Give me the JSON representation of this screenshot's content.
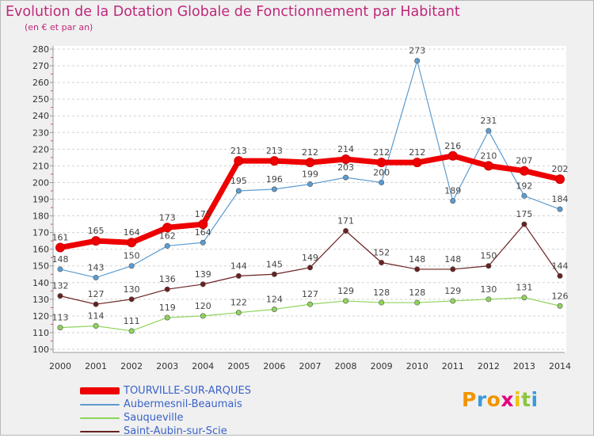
{
  "header": {
    "title": "Evolution de la Dotation Globale de Fonctionnement par Habitant",
    "subtitle": "(en € et par an)"
  },
  "logo": {
    "text": "Proxiti",
    "colors": [
      "#f29400",
      "#3a9ad9",
      "#f29400",
      "#e5007e",
      "#f2c400",
      "#8cc63f",
      "#3a9ad9"
    ]
  },
  "chart_data": {
    "type": "line",
    "title": "Evolution de la Dotation Globale de Fonctionnement par Habitant",
    "subtitle": "(en € et par an)",
    "x": [
      2000,
      2001,
      2002,
      2003,
      2004,
      2005,
      2006,
      2007,
      2008,
      2009,
      2010,
      2011,
      2012,
      2013,
      2014
    ],
    "ylim": [
      100,
      280
    ],
    "yticks": [
      100,
      110,
      120,
      130,
      140,
      150,
      160,
      170,
      180,
      190,
      200,
      210,
      220,
      230,
      240,
      250,
      260,
      270,
      280
    ],
    "grid": "horizontal dashed",
    "legend": "bottom-left",
    "series": [
      {
        "name": "TOURVILLE-SUR-ARQUES",
        "color": "#ee0000",
        "values": [
          161,
          165,
          164,
          173,
          175,
          213,
          213,
          212,
          214,
          212,
          212,
          216,
          210,
          207,
          202
        ]
      },
      {
        "name": "Aubermesnil-Beaumais",
        "color": "#5c9cd0",
        "values": [
          148,
          143,
          150,
          162,
          164,
          195,
          196,
          199,
          203,
          200,
          273,
          189,
          231,
          192,
          184
        ]
      },
      {
        "name": "Sauqueville",
        "color": "#8fd45a",
        "values": [
          113,
          114,
          111,
          119,
          120,
          122,
          124,
          127,
          129,
          128,
          128,
          129,
          130,
          131,
          126
        ]
      },
      {
        "name": "Saint-Aubin-sur-Scie",
        "color": "#6a2020",
        "values": [
          132,
          127,
          130,
          136,
          139,
          144,
          145,
          149,
          171,
          152,
          148,
          148,
          150,
          175,
          144
        ]
      }
    ]
  }
}
